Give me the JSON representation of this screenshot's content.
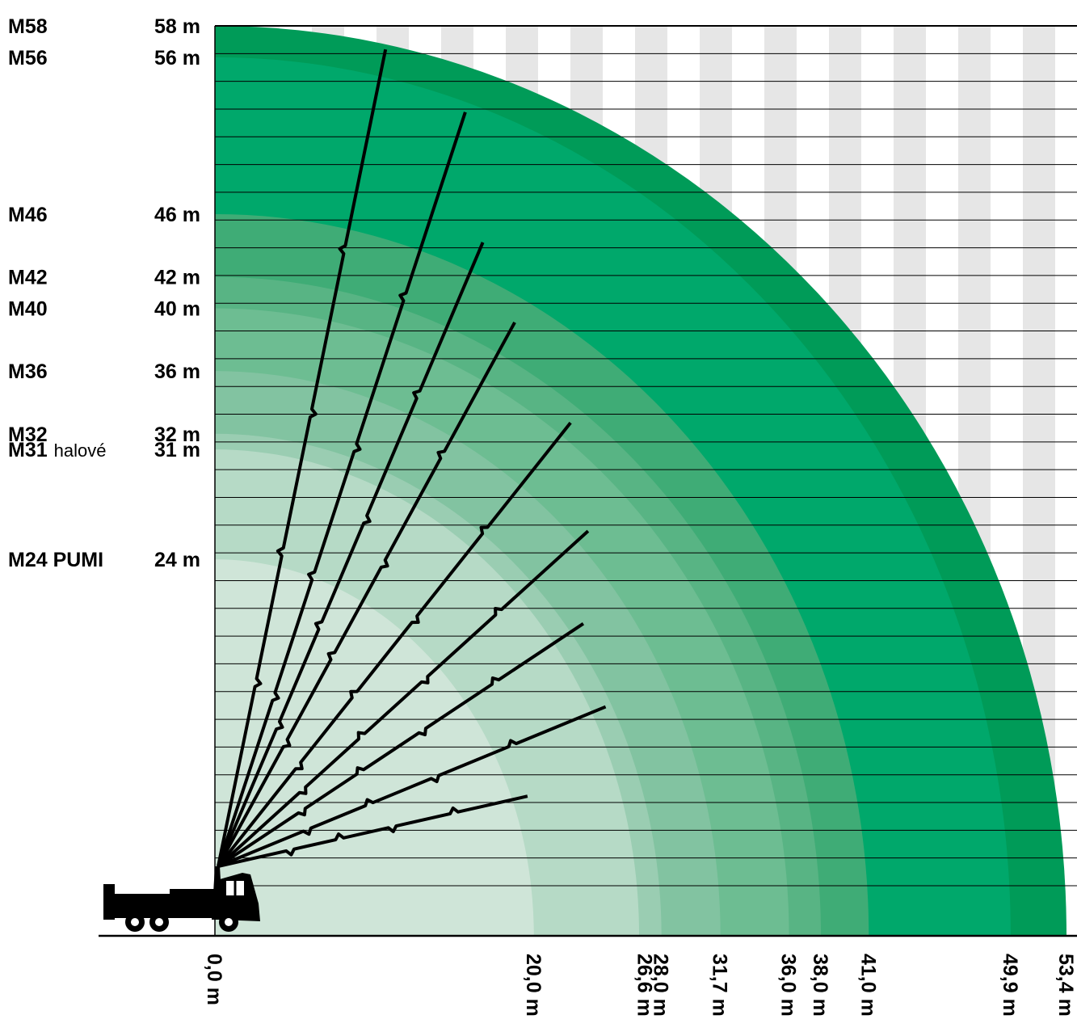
{
  "chart_data": {
    "type": "area",
    "subtype": "concrete pump boom reach diagram",
    "colors": {
      "zone_palette": [
        "#e2efe7",
        "#cfe5d8",
        "#b6dac6",
        "#9acdb2",
        "#82c3a1",
        "#6dbd92",
        "#58b484",
        "#3fac76",
        "#00a86b",
        "#009b58"
      ],
      "grid_stripe": "#e6e6e6",
      "boom": "#000000",
      "truck": "#000000"
    },
    "models": [
      {
        "model": "M58",
        "suffix": "",
        "height_label": "58 m",
        "height": 58,
        "reach": 53.4
      },
      {
        "model": "M56",
        "suffix": "",
        "height_label": "56 m",
        "height": 56,
        "reach": 49.9
      },
      {
        "model": "M46",
        "suffix": "",
        "height_label": "46 m",
        "height": 46,
        "reach": 41.0
      },
      {
        "model": "M42",
        "suffix": "",
        "height_label": "42 m",
        "height": 42,
        "reach": 38.0
      },
      {
        "model": "M40",
        "suffix": "",
        "height_label": "40 m",
        "height": 40,
        "reach": 36.0
      },
      {
        "model": "M36",
        "suffix": "",
        "height_label": "36 m",
        "height": 36,
        "reach": 31.7
      },
      {
        "model": "M32",
        "suffix": "",
        "height_label": "32 m",
        "height": 32,
        "reach": 28.0
      },
      {
        "model": "M31",
        "suffix": "halové",
        "height_label": "31 m",
        "height": 31,
        "reach": 26.6
      },
      {
        "model": "M24 PUMI",
        "suffix": "",
        "height_label": "24 m",
        "height": 24,
        "reach": 20.0
      }
    ],
    "x_ticks": [
      "0,0 m",
      "20,0 m",
      "26,6 m",
      "28,0 m",
      "31,7 m",
      "36,0 m",
      "38,0 m",
      "41,0 m",
      "49,9 m",
      "53,4 m"
    ],
    "x_tick_values": [
      0,
      20.0,
      26.6,
      28.0,
      31.7,
      36.0,
      38.0,
      41.0,
      49.9,
      53.4
    ],
    "xlim": [
      0,
      53.4
    ],
    "ylim": [
      0,
      58
    ],
    "grid": true,
    "grid_line_count": 31,
    "boom_tips": [
      {
        "x": 10.7,
        "y": 56.5
      },
      {
        "x": 15.7,
        "y": 52.5
      },
      {
        "x": 16.8,
        "y": 44.2
      },
      {
        "x": 18.8,
        "y": 39.1
      },
      {
        "x": 22.3,
        "y": 32.7
      },
      {
        "x": 23.4,
        "y": 25.8
      },
      {
        "x": 23.1,
        "y": 19.9
      },
      {
        "x": 24.5,
        "y": 14.6
      },
      {
        "x": 19.6,
        "y": 8.9
      }
    ]
  }
}
